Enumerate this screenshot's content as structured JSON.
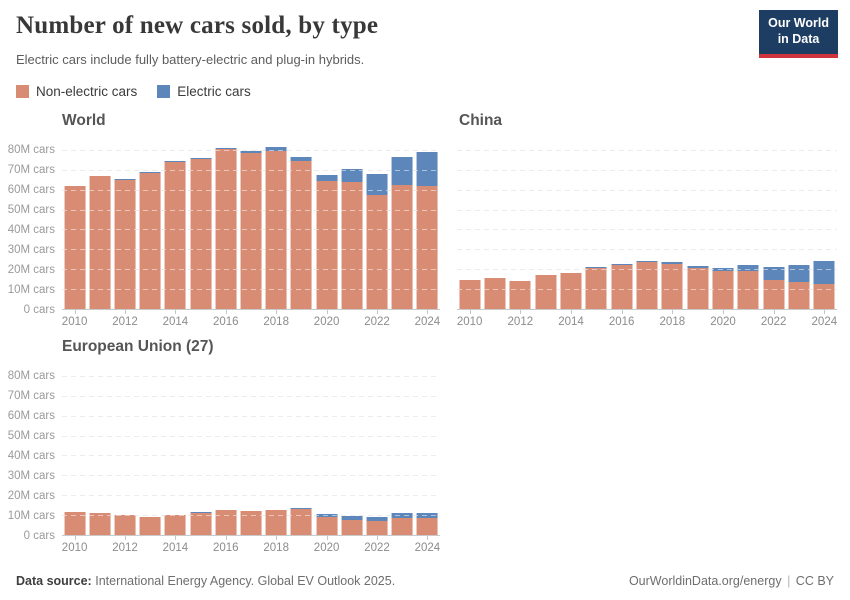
{
  "header": {
    "title": "Number of new cars sold, by type",
    "subtitle": "Electric cars include fully battery-electric and plug-in hybrids.",
    "logo_line1": "Our World",
    "logo_line2": "in Data"
  },
  "colors": {
    "non_electric": "#d98c74",
    "electric": "#5d87ba",
    "logo_navy": "#1d3d63",
    "logo_red": "#cf333b",
    "gridline": "#d9d9d9",
    "axis_text": "#9a9a9a"
  },
  "legend": {
    "items": [
      {
        "label": "Non-electric cars",
        "color": "#d98c74"
      },
      {
        "label": "Electric cars",
        "color": "#5d87ba"
      }
    ]
  },
  "chart_data": [
    {
      "type": "bar",
      "stacked": true,
      "title": "World",
      "x": [
        2010,
        2011,
        2012,
        2013,
        2014,
        2015,
        2016,
        2017,
        2018,
        2019,
        2020,
        2021,
        2022,
        2023,
        2024
      ],
      "series": [
        {
          "name": "Non-electric cars",
          "values": [
            62.0,
            67.0,
            65.1,
            68.6,
            74.1,
            75.3,
            80.4,
            78.5,
            79.6,
            74.3,
            64.5,
            64.0,
            57.5,
            62.4,
            61.7
          ]
        },
        {
          "name": "Electric cars",
          "values": [
            0.02,
            0.05,
            0.1,
            0.2,
            0.3,
            0.55,
            0.75,
            1.2,
            2.0,
            2.2,
            3.0,
            6.6,
            10.5,
            13.9,
            17.3
          ]
        }
      ],
      "ylim": [
        0,
        84
      ],
      "ytick_step": 10,
      "gridline_max": 80,
      "show_y_labels": true,
      "ytick_labels": [
        "80M cars",
        "70M cars",
        "60M cars",
        "50M cars",
        "40M cars",
        "30M cars",
        "20M cars",
        "10M cars",
        "0 cars"
      ],
      "xtick_labels": [
        "2010",
        "2012",
        "2014",
        "2016",
        "2018",
        "2020",
        "2022",
        "2024"
      ],
      "grid": true,
      "legend_position": "top"
    },
    {
      "type": "bar",
      "stacked": true,
      "title": "China",
      "x": [
        2010,
        2011,
        2012,
        2013,
        2014,
        2015,
        2016,
        2017,
        2018,
        2019,
        2020,
        2021,
        2022,
        2023,
        2024
      ],
      "series": [
        {
          "name": "Non-electric cars",
          "values": [
            14.7,
            15.5,
            14.0,
            17.1,
            18.2,
            20.6,
            22.0,
            23.6,
            22.5,
            20.6,
            19.2,
            18.9,
            14.7,
            13.7,
            12.4
          ]
        },
        {
          "name": "Electric cars",
          "values": [
            0.0,
            0.01,
            0.01,
            0.02,
            0.1,
            0.4,
            0.7,
            0.8,
            1.2,
            1.1,
            1.2,
            3.3,
            6.2,
            8.2,
            11.8
          ]
        }
      ],
      "ylim": [
        0,
        84
      ],
      "ytick_step": 10,
      "gridline_max": 80,
      "show_y_labels": false,
      "ytick_labels": [],
      "xtick_labels": [
        "2010",
        "2012",
        "2014",
        "2016",
        "2018",
        "2020",
        "2022",
        "2024"
      ],
      "grid": true,
      "legend_position": "top"
    },
    {
      "type": "bar",
      "stacked": true,
      "title": "European Union (27)",
      "x": [
        2010,
        2011,
        2012,
        2013,
        2014,
        2015,
        2016,
        2017,
        2018,
        2019,
        2020,
        2021,
        2022,
        2023,
        2024
      ],
      "series": [
        {
          "name": "Non-electric cars",
          "values": [
            11.8,
            11.1,
            10.1,
            9.1,
            9.85,
            11.3,
            12.6,
            12.1,
            12.4,
            13.2,
            9.3,
            7.7,
            7.1,
            8.7,
            8.8
          ]
        },
        {
          "name": "Electric cars",
          "values": [
            0.0,
            0.01,
            0.02,
            0.05,
            0.1,
            0.15,
            0.1,
            0.2,
            0.3,
            0.45,
            1.05,
            1.7,
            2.0,
            2.2,
            2.2
          ]
        }
      ],
      "ylim": [
        0,
        84
      ],
      "ytick_step": 10,
      "gridline_max": 80,
      "show_y_labels": true,
      "ytick_labels": [
        "80M cars",
        "70M cars",
        "60M cars",
        "50M cars",
        "40M cars",
        "30M cars",
        "20M cars",
        "10M cars",
        "0 cars"
      ],
      "xtick_labels": [
        "2010",
        "2012",
        "2014",
        "2016",
        "2018",
        "2020",
        "2022",
        "2024"
      ],
      "grid": true,
      "legend_position": "top"
    }
  ],
  "footer": {
    "datasource_label": "Data source:",
    "datasource_text": "International Energy Agency. Global EV Outlook 2025.",
    "url": "OurWorldinData.org/energy",
    "separator": "|",
    "license": "CC BY"
  }
}
